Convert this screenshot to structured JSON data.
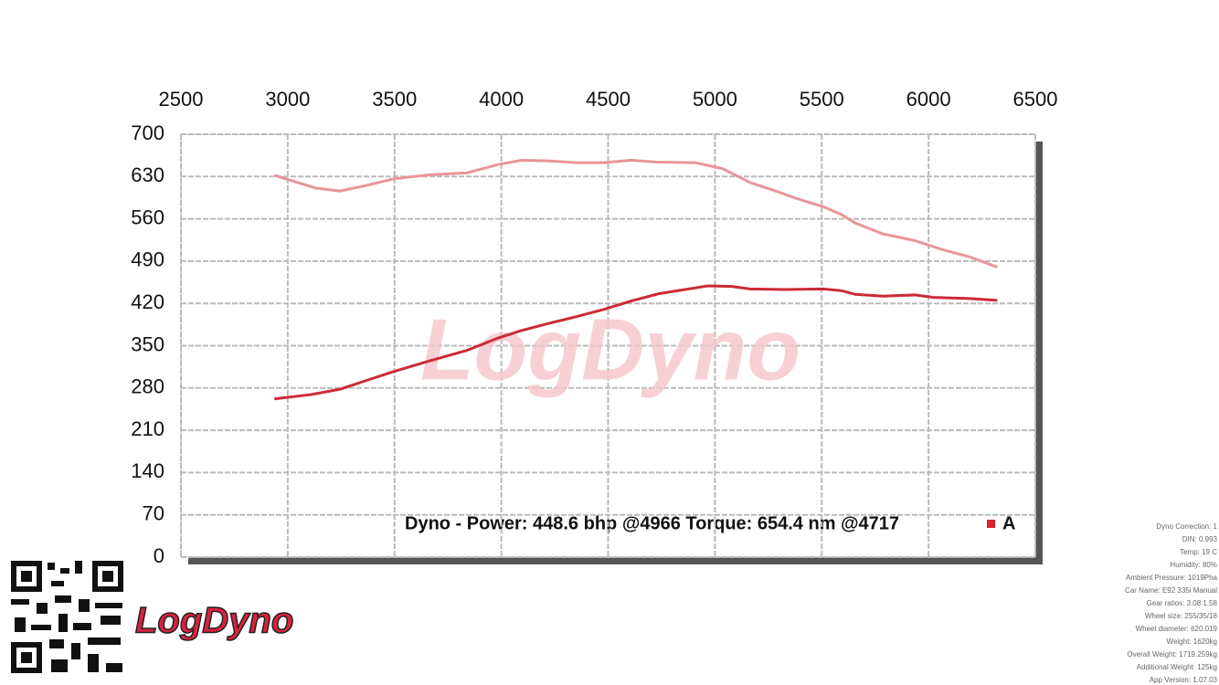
{
  "chart_data": {
    "type": "line",
    "annotation": "Dyno - Power: 448.6 bhp @4966 Torque: 654.4 nm @4717",
    "legend_label": "A",
    "legend_color": "#d8232a",
    "watermark": "LogDyno",
    "xlim": [
      2500,
      6500
    ],
    "xticks": [
      2500,
      3000,
      3500,
      4000,
      4500,
      5000,
      5500,
      6000,
      6500
    ],
    "ylim": [
      0,
      700
    ],
    "yticks": [
      0,
      70,
      140,
      210,
      280,
      350,
      420,
      490,
      560,
      630,
      700
    ],
    "grid": true,
    "series": [
      {
        "color": "#e8959a",
        "x": [
          2937,
          3130,
          3245,
          3365,
          3494,
          3665,
          3837,
          3987,
          4094,
          4222,
          4351,
          4479,
          4608,
          4717,
          4908,
          5036,
          5165,
          5293,
          5379,
          5508,
          5593,
          5658,
          5786,
          5936,
          6065,
          6193,
          6322
        ],
        "values": [
          632,
          611,
          606,
          615,
          626,
          633,
          636,
          650,
          657,
          656,
          653,
          653,
          657,
          654,
          653,
          643,
          620,
          605,
          594,
          580,
          567,
          553,
          535,
          524,
          509,
          497,
          480
        ]
      },
      {
        "color": "#cc2a36",
        "x": [
          2937,
          3108,
          3245,
          3365,
          3494,
          3665,
          3837,
          3987,
          4094,
          4222,
          4351,
          4479,
          4608,
          4736,
          4966,
          5079,
          5165,
          5336,
          5508,
          5593,
          5658,
          5786,
          5936,
          6022,
          6193,
          6322
        ],
        "values": [
          262,
          269,
          278,
          292,
          307,
          325,
          342,
          363,
          375,
          387,
          398,
          410,
          424,
          436,
          449,
          448,
          444,
          443,
          444,
          441,
          435,
          432,
          434,
          430,
          428,
          425
        ]
      }
    ]
  },
  "brand": "LogDyno",
  "specs": [
    "Dyno Correction: 1",
    "DIN: 0.993",
    "Temp: 19 C",
    "Humidity: 80%",
    "Ambient Pressure: 1019Pha",
    "Car Name: E92 335i Manual",
    "Gear ratios: 3.08 1.58",
    "Wheel size: 255/35/18",
    "Wheel diameter: 620.019",
    "Weight: 1620kg",
    "Overall Weight: 1719.259kg",
    "Additional Weight: 125kg",
    "App Version: 1.07.03"
  ]
}
